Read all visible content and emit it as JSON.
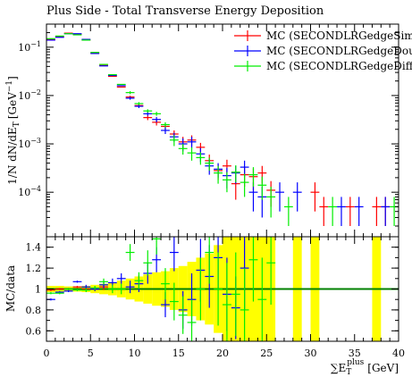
{
  "chart_data": {
    "type": "scatter",
    "title": "Plus Side - Total Transverse Energy Deposition",
    "xlabel": "∑E_T^plus [GeV]",
    "xlabel_parts": {
      "base": "∑E",
      "sub": "T",
      "sup": "plus",
      "unit": "[GeV]"
    },
    "ylabel": "1/N dN/dE_T [GeV^-1]",
    "ylabel_parts": {
      "prefix": "1/N dN/dE",
      "sub": "T",
      "unit": "[GeV",
      "sup": "−1",
      "close": "]"
    },
    "ratio_ylabel": "MC/data",
    "xlim": [
      0,
      40
    ],
    "main": {
      "yscale": "log",
      "ylim": [
        1.2e-05,
        0.3
      ],
      "yticks": [
        {
          "v": 0.1,
          "b": "10",
          "e": "−1"
        },
        {
          "v": 0.01,
          "b": "10",
          "e": "−2"
        },
        {
          "v": 0.001,
          "b": "10",
          "e": "−3"
        },
        {
          "v": 0.0001,
          "b": "10",
          "e": "−4"
        }
      ]
    },
    "ratio": {
      "ylim": [
        0.5,
        1.5
      ],
      "yticks": [
        "0.6",
        "0.8",
        "1",
        "1.2",
        "1.4"
      ],
      "reference_line": 1.0
    },
    "xticks": [
      "0",
      "5",
      "10",
      "15",
      "20",
      "25",
      "30",
      "35",
      "40"
    ],
    "band_color": "#ffff00",
    "line_color": "#008000",
    "series": [
      {
        "name": "MC (SECONDLRGedgeSimple)",
        "color": "#ff0000",
        "points": [
          {
            "x": 0.5,
            "y": 0.145,
            "err": 0
          },
          {
            "x": 1.5,
            "y": 0.165,
            "err": 0
          },
          {
            "x": 2.5,
            "y": 0.195,
            "err": 0
          },
          {
            "x": 3.5,
            "y": 0.185,
            "err": 0
          },
          {
            "x": 4.5,
            "y": 0.14,
            "err": 0
          },
          {
            "x": 5.5,
            "y": 0.076,
            "err": 0
          },
          {
            "x": 6.5,
            "y": 0.042,
            "err": 0
          },
          {
            "x": 7.5,
            "y": 0.025,
            "err": 0
          },
          {
            "x": 8.5,
            "y": 0.015,
            "err": 0
          },
          {
            "x": 9.5,
            "y": 0.0093,
            "err": 0.0006
          },
          {
            "x": 10.5,
            "y": 0.0062,
            "err": 0.0005
          },
          {
            "x": 11.5,
            "y": 0.0035,
            "err": 0.0004
          },
          {
            "x": 12.5,
            "y": 0.0028,
            "err": 0.0004
          },
          {
            "x": 13.5,
            "y": 0.0023,
            "err": 0.0003
          },
          {
            "x": 14.5,
            "y": 0.0016,
            "err": 0.0003
          },
          {
            "x": 15.5,
            "y": 0.0011,
            "err": 0.0003
          },
          {
            "x": 16.5,
            "y": 0.0012,
            "err": 0.0003
          },
          {
            "x": 17.5,
            "y": 0.00085,
            "err": 0.0002
          },
          {
            "x": 18.5,
            "y": 0.00045,
            "err": 0.00015
          },
          {
            "x": 19.5,
            "y": 0.00028,
            "err": 0.0001
          },
          {
            "x": 20.5,
            "y": 0.00035,
            "err": 0.00012
          },
          {
            "x": 21.5,
            "y": 0.00015,
            "err": 8e-05
          },
          {
            "x": 22.5,
            "y": 0.00023,
            "err": 0.0001
          },
          {
            "x": 23.5,
            "y": 0.00021,
            "err": 0.0001
          },
          {
            "x": 24.5,
            "y": 0.00025,
            "err": 0.0001
          },
          {
            "x": 25.5,
            "y": 0.00011,
            "err": 6e-05
          },
          {
            "x": 30.5,
            "y": 0.0001,
            "err": 6e-05
          },
          {
            "x": 31.5,
            "y": 5e-05,
            "err": 3e-05
          },
          {
            "x": 34.5,
            "y": 5e-05,
            "err": 3e-05
          },
          {
            "x": 37.5,
            "y": 5e-05,
            "err": 3e-05
          },
          {
            "x": 38.5,
            "y": 5e-05,
            "err": 3e-05
          }
        ]
      },
      {
        "name": "MC (SECONDLRGedgeDouble)",
        "color": "#0000ff",
        "points": [
          {
            "x": 0.5,
            "y": 0.14,
            "err": 0
          },
          {
            "x": 1.5,
            "y": 0.16,
            "err": 0
          },
          {
            "x": 2.5,
            "y": 0.19,
            "err": 0
          },
          {
            "x": 3.5,
            "y": 0.19,
            "err": 0
          },
          {
            "x": 4.5,
            "y": 0.145,
            "err": 0
          },
          {
            "x": 5.5,
            "y": 0.074,
            "err": 0
          },
          {
            "x": 6.5,
            "y": 0.041,
            "err": 0
          },
          {
            "x": 7.5,
            "y": 0.026,
            "err": 0
          },
          {
            "x": 8.5,
            "y": 0.016,
            "err": 0
          },
          {
            "x": 9.5,
            "y": 0.0088,
            "err": 0.0006
          },
          {
            "x": 10.5,
            "y": 0.006,
            "err": 0.0005
          },
          {
            "x": 11.5,
            "y": 0.0042,
            "err": 0.0004
          },
          {
            "x": 12.5,
            "y": 0.0032,
            "err": 0.0004
          },
          {
            "x": 13.5,
            "y": 0.0019,
            "err": 0.0003
          },
          {
            "x": 14.5,
            "y": 0.0014,
            "err": 0.0003
          },
          {
            "x": 15.5,
            "y": 0.001,
            "err": 0.0003
          },
          {
            "x": 16.5,
            "y": 0.0011,
            "err": 0.0003
          },
          {
            "x": 17.5,
            "y": 0.00062,
            "err": 0.0002
          },
          {
            "x": 18.5,
            "y": 0.00035,
            "err": 0.00012
          },
          {
            "x": 19.5,
            "y": 0.0003,
            "err": 0.0001
          },
          {
            "x": 20.5,
            "y": 0.00022,
            "err": 0.0001
          },
          {
            "x": 21.5,
            "y": 0.00025,
            "err": 0.0001
          },
          {
            "x": 22.5,
            "y": 0.00033,
            "err": 0.00012
          },
          {
            "x": 23.5,
            "y": 0.0001,
            "err": 6e-05
          },
          {
            "x": 24.5,
            "y": 8e-05,
            "err": 5e-05
          },
          {
            "x": 26.5,
            "y": 0.0001,
            "err": 6e-05
          },
          {
            "x": 28.5,
            "y": 0.0001,
            "err": 6e-05
          },
          {
            "x": 33.5,
            "y": 5e-05,
            "err": 3e-05
          },
          {
            "x": 35.5,
            "y": 5e-05,
            "err": 3e-05
          },
          {
            "x": 38.5,
            "y": 5e-05,
            "err": 3e-05
          }
        ]
      },
      {
        "name": "MC (SECONDLRGedgeDiff)",
        "color": "#00ee00",
        "points": [
          {
            "x": 0.5,
            "y": 0.15,
            "err": 0
          },
          {
            "x": 1.5,
            "y": 0.17,
            "err": 0
          },
          {
            "x": 2.5,
            "y": 0.19,
            "err": 0
          },
          {
            "x": 3.5,
            "y": 0.18,
            "err": 0
          },
          {
            "x": 4.5,
            "y": 0.14,
            "err": 0
          },
          {
            "x": 5.5,
            "y": 0.078,
            "err": 0
          },
          {
            "x": 6.5,
            "y": 0.044,
            "err": 0
          },
          {
            "x": 7.5,
            "y": 0.027,
            "err": 0
          },
          {
            "x": 8.5,
            "y": 0.017,
            "err": 0
          },
          {
            "x": 9.5,
            "y": 0.0115,
            "err": 0.0008
          },
          {
            "x": 10.5,
            "y": 0.0068,
            "err": 0.0005
          },
          {
            "x": 11.5,
            "y": 0.0048,
            "err": 0.0004
          },
          {
            "x": 12.5,
            "y": 0.0042,
            "err": 0.0004
          },
          {
            "x": 13.5,
            "y": 0.0025,
            "err": 0.0003
          },
          {
            "x": 14.5,
            "y": 0.0012,
            "err": 0.0003
          },
          {
            "x": 15.5,
            "y": 0.0008,
            "err": 0.0002
          },
          {
            "x": 16.5,
            "y": 0.00065,
            "err": 0.0002
          },
          {
            "x": 17.5,
            "y": 0.00052,
            "err": 0.00015
          },
          {
            "x": 18.5,
            "y": 0.0004,
            "err": 0.00012
          },
          {
            "x": 19.5,
            "y": 0.00025,
            "err": 0.0001
          },
          {
            "x": 20.5,
            "y": 0.00018,
            "err": 8e-05
          },
          {
            "x": 21.5,
            "y": 0.00026,
            "err": 0.0001
          },
          {
            "x": 22.5,
            "y": 0.00016,
            "err": 8e-05
          },
          {
            "x": 23.5,
            "y": 0.00023,
            "err": 0.0001
          },
          {
            "x": 24.5,
            "y": 0.00014,
            "err": 7e-05
          },
          {
            "x": 25.5,
            "y": 8e-05,
            "err": 5e-05
          },
          {
            "x": 27.5,
            "y": 5e-05,
            "err": 3e-05
          },
          {
            "x": 32.5,
            "y": 5e-05,
            "err": 3e-05
          },
          {
            "x": 39.5,
            "y": 5e-05,
            "err": 3e-05
          }
        ]
      }
    ],
    "ratio_band": [
      {
        "x0": 0,
        "x1": 1,
        "lo": 0.97,
        "hi": 1.03
      },
      {
        "x0": 1,
        "x1": 2,
        "lo": 0.97,
        "hi": 1.03
      },
      {
        "x0": 2,
        "x1": 3,
        "lo": 0.975,
        "hi": 1.025
      },
      {
        "x0": 3,
        "x1": 4,
        "lo": 0.975,
        "hi": 1.025
      },
      {
        "x0": 4,
        "x1": 5,
        "lo": 0.97,
        "hi": 1.03
      },
      {
        "x0": 5,
        "x1": 6,
        "lo": 0.96,
        "hi": 1.04
      },
      {
        "x0": 6,
        "x1": 7,
        "lo": 0.95,
        "hi": 1.05
      },
      {
        "x0": 7,
        "x1": 8,
        "lo": 0.94,
        "hi": 1.06
      },
      {
        "x0": 8,
        "x1": 9,
        "lo": 0.92,
        "hi": 1.08
      },
      {
        "x0": 9,
        "x1": 10,
        "lo": 0.9,
        "hi": 1.1
      },
      {
        "x0": 10,
        "x1": 11,
        "lo": 0.88,
        "hi": 1.12
      },
      {
        "x0": 11,
        "x1": 12,
        "lo": 0.86,
        "hi": 1.14
      },
      {
        "x0": 12,
        "x1": 13,
        "lo": 0.84,
        "hi": 1.16
      },
      {
        "x0": 13,
        "x1": 14,
        "lo": 0.83,
        "hi": 1.17
      },
      {
        "x0": 14,
        "x1": 15,
        "lo": 0.8,
        "hi": 1.2
      },
      {
        "x0": 15,
        "x1": 16,
        "lo": 0.78,
        "hi": 1.22
      },
      {
        "x0": 16,
        "x1": 17,
        "lo": 0.74,
        "hi": 1.26
      },
      {
        "x0": 17,
        "x1": 18,
        "lo": 0.7,
        "hi": 1.3
      },
      {
        "x0": 18,
        "x1": 19,
        "lo": 0.66,
        "hi": 1.34
      },
      {
        "x0": 19,
        "x1": 20,
        "lo": 0.58,
        "hi": 1.42
      },
      {
        "x0": 20,
        "x1": 26,
        "lo": 0.5,
        "hi": 1.5
      },
      {
        "x0": 28,
        "x1": 29,
        "lo": 0.5,
        "hi": 1.5
      },
      {
        "x0": 30,
        "x1": 31,
        "lo": 0.5,
        "hi": 1.5
      },
      {
        "x0": 37,
        "x1": 38,
        "lo": 0.5,
        "hi": 1.5
      }
    ],
    "ratio_series": [
      {
        "name": "MC (SECONDLRGedgeSimple)",
        "color": "#ff0000",
        "points": [
          {
            "x": 0.5,
            "y": 0.99,
            "err": 0.01
          },
          {
            "x": 1.5,
            "y": 1.0,
            "err": 0.01
          },
          {
            "x": 2.5,
            "y": 1.0,
            "err": 0.01
          },
          {
            "x": 3.5,
            "y": 1.02,
            "err": 0.01
          },
          {
            "x": 4.5,
            "y": 1.0,
            "err": 0.01
          },
          {
            "x": 5.5,
            "y": 1.0,
            "err": 0.02
          },
          {
            "x": 6.5,
            "y": 1.02,
            "err": 0.03
          }
        ]
      },
      {
        "name": "MC (SECONDLRGedgeDouble)",
        "color": "#0000ff",
        "points": [
          {
            "x": 0.5,
            "y": 0.9,
            "err": 0.01
          },
          {
            "x": 1.5,
            "y": 0.97,
            "err": 0.01
          },
          {
            "x": 2.5,
            "y": 0.98,
            "err": 0.01
          },
          {
            "x": 3.5,
            "y": 1.07,
            "err": 0.01
          },
          {
            "x": 4.5,
            "y": 1.02,
            "err": 0.02
          },
          {
            "x": 5.5,
            "y": 1.0,
            "err": 0.02
          },
          {
            "x": 6.5,
            "y": 1.04,
            "err": 0.03
          },
          {
            "x": 7.5,
            "y": 1.06,
            "err": 0.04
          },
          {
            "x": 8.5,
            "y": 1.1,
            "err": 0.05
          },
          {
            "x": 9.5,
            "y": 1.02,
            "err": 0.06
          },
          {
            "x": 10.5,
            "y": 1.05,
            "err": 0.08
          },
          {
            "x": 11.5,
            "y": 1.15,
            "err": 0.1
          },
          {
            "x": 12.5,
            "y": 1.28,
            "err": 0.12
          },
          {
            "x": 13.5,
            "y": 0.85,
            "err": 0.12
          },
          {
            "x": 14.5,
            "y": 1.35,
            "err": 0.18
          },
          {
            "x": 15.5,
            "y": 0.8,
            "err": 0.18
          },
          {
            "x": 16.5,
            "y": 0.9,
            "err": 0.25
          },
          {
            "x": 17.5,
            "y": 1.18,
            "err": 0.3
          },
          {
            "x": 18.5,
            "y": 1.12,
            "err": 0.3
          },
          {
            "x": 19.5,
            "y": 1.3,
            "err": 0.3
          },
          {
            "x": 20.5,
            "y": 0.95,
            "err": 0.35
          },
          {
            "x": 21.5,
            "y": 0.82,
            "err": 0.3
          },
          {
            "x": 22.5,
            "y": 1.2,
            "err": 0.4
          }
        ]
      },
      {
        "name": "MC (SECONDLRGedgeDiff)",
        "color": "#00ee00",
        "points": [
          {
            "x": 0.5,
            "y": 0.96,
            "err": 0.01
          },
          {
            "x": 1.5,
            "y": 0.96,
            "err": 0.01
          },
          {
            "x": 2.5,
            "y": 1.0,
            "err": 0.01
          },
          {
            "x": 3.5,
            "y": 0.99,
            "err": 0.01
          },
          {
            "x": 4.5,
            "y": 0.99,
            "err": 0.02
          },
          {
            "x": 5.5,
            "y": 1.01,
            "err": 0.02
          },
          {
            "x": 6.5,
            "y": 1.07,
            "err": 0.03
          },
          {
            "x": 7.5,
            "y": 1.0,
            "err": 0.04
          },
          {
            "x": 8.5,
            "y": 1.0,
            "err": 0.05
          },
          {
            "x": 9.5,
            "y": 1.35,
            "err": 0.08
          },
          {
            "x": 10.5,
            "y": 1.08,
            "err": 0.08
          },
          {
            "x": 11.5,
            "y": 1.25,
            "err": 0.12
          },
          {
            "x": 12.5,
            "y": 1.48,
            "err": 0.15
          },
          {
            "x": 13.5,
            "y": 1.05,
            "err": 0.15
          },
          {
            "x": 14.5,
            "y": 0.88,
            "err": 0.18
          },
          {
            "x": 15.5,
            "y": 0.75,
            "err": 0.18
          },
          {
            "x": 16.5,
            "y": 0.68,
            "err": 0.22
          },
          {
            "x": 17.5,
            "y": 1.0,
            "err": 0.3
          },
          {
            "x": 18.5,
            "y": 1.35,
            "err": 0.3
          },
          {
            "x": 19.5,
            "y": 1.0,
            "err": 0.35
          },
          {
            "x": 20.5,
            "y": 0.85,
            "err": 0.4
          },
          {
            "x": 21.5,
            "y": 0.95,
            "err": 0.4
          },
          {
            "x": 22.5,
            "y": 0.8,
            "err": 0.4
          },
          {
            "x": 23.5,
            "y": 1.28,
            "err": 0.4
          },
          {
            "x": 24.5,
            "y": 0.9,
            "err": 0.4
          },
          {
            "x": 25.5,
            "y": 1.25,
            "err": 0.4
          }
        ]
      }
    ],
    "legend_position": "top-right"
  }
}
